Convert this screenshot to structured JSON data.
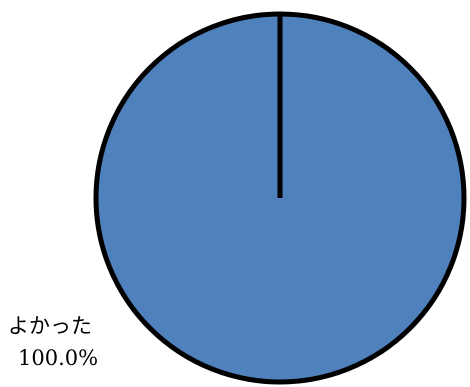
{
  "chart_data": {
    "type": "pie",
    "slices": [
      {
        "label": "よかった",
        "value": 100.0,
        "value_label": "100.0%",
        "color": "#4f81bd"
      }
    ],
    "start_angle_deg": 0,
    "outline_color": "#000000"
  }
}
